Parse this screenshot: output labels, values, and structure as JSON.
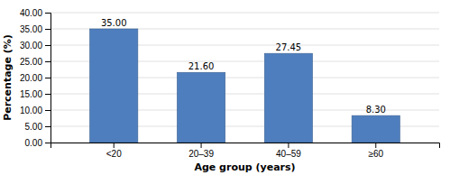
{
  "chart_data": {
    "type": "bar",
    "categories": [
      "<20",
      "20–39",
      "40–59",
      "≥60"
    ],
    "values": [
      35.0,
      21.6,
      27.45,
      8.3
    ],
    "value_labels": [
      "35.00",
      "21.60",
      "27.45",
      "8.30"
    ],
    "data_labels": true,
    "color": "#4E7EBD",
    "xlabel": "Age group (years)",
    "ylabel": "Percentage (%)",
    "ylim": [
      0,
      40
    ],
    "yticks": [
      {
        "value": 0,
        "label": "0.00"
      },
      {
        "value": 5,
        "label": "5.00"
      },
      {
        "value": 10,
        "label": "10.00"
      },
      {
        "value": 15,
        "label": "15.00"
      },
      {
        "value": 20,
        "label": "20.00"
      },
      {
        "value": 25,
        "label": "25.00"
      },
      {
        "value": 30,
        "label": "30.00"
      },
      {
        "value": 35,
        "label": "35.00"
      },
      {
        "value": 40,
        "label": "40.00"
      }
    ],
    "grid": true
  }
}
